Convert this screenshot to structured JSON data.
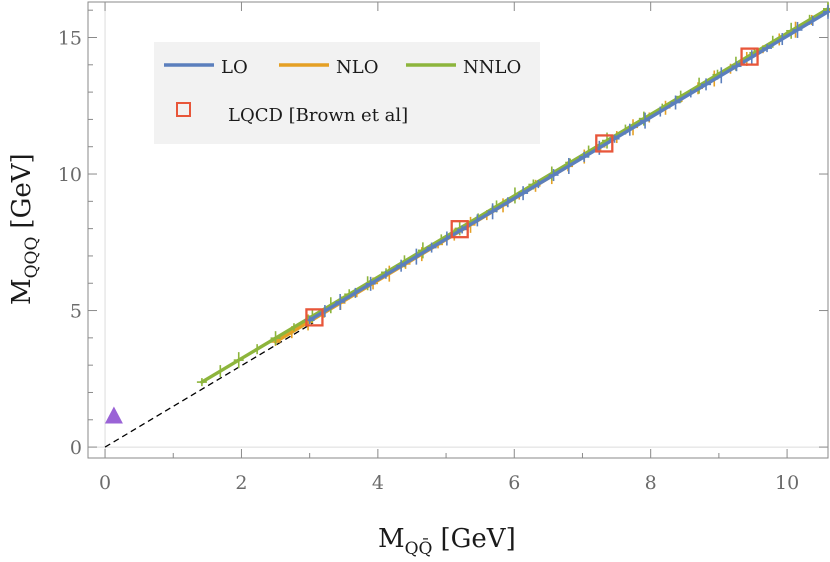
{
  "chart_data": {
    "type": "line",
    "xlabel": {
      "main": "M",
      "sub": "QQ̄",
      "unit": "[GeV]"
    },
    "ylabel": {
      "main": "M",
      "sub": "QQQ",
      "unit": "[GeV]"
    },
    "xlim": [
      -0.25,
      10.6
    ],
    "ylim": [
      -0.4,
      16.3
    ],
    "xticks": [
      "0",
      "2",
      "4",
      "6",
      "8",
      "10"
    ],
    "yticks": [
      "0",
      "5",
      "10",
      "15"
    ],
    "grid": false,
    "legend": {
      "placement": "top-left",
      "entries": [
        {
          "label": "LO",
          "color": "#5b7fbd"
        },
        {
          "label": "NLO",
          "color": "#e5a024"
        },
        {
          "label": "NNLO",
          "color": "#8db53c"
        },
        {
          "label": "LQCD [Brown et al]",
          "color": "#e8563a"
        }
      ]
    },
    "series": [
      {
        "name": "LO",
        "color": "#5b7fbd",
        "x": [
          3.0,
          10.6
        ],
        "y": [
          4.65,
          15.94
        ]
      },
      {
        "name": "NLO",
        "color": "#e5a024",
        "x": [
          2.5,
          10.6
        ],
        "y": [
          3.85,
          16.0
        ]
      },
      {
        "name": "NNLO",
        "color": "#8db53c",
        "x": [
          1.42,
          10.6
        ],
        "y": [
          2.38,
          16.05
        ]
      },
      {
        "name": "LQCD [Brown et al]",
        "color": "#e8563a",
        "type": "scatter",
        "marker": "open-square",
        "x": [
          3.07,
          5.2,
          7.32,
          9.45
        ],
        "y": [
          4.75,
          7.98,
          11.12,
          14.3
        ]
      }
    ],
    "reference_line": {
      "style": "dashed",
      "color": "#000000",
      "x": [
        0,
        3.05
      ],
      "y": [
        0,
        4.55
      ]
    },
    "extra_marker": {
      "shape": "triangle",
      "color": "#9a63d6",
      "x": 0.13,
      "y": 1.12
    }
  }
}
